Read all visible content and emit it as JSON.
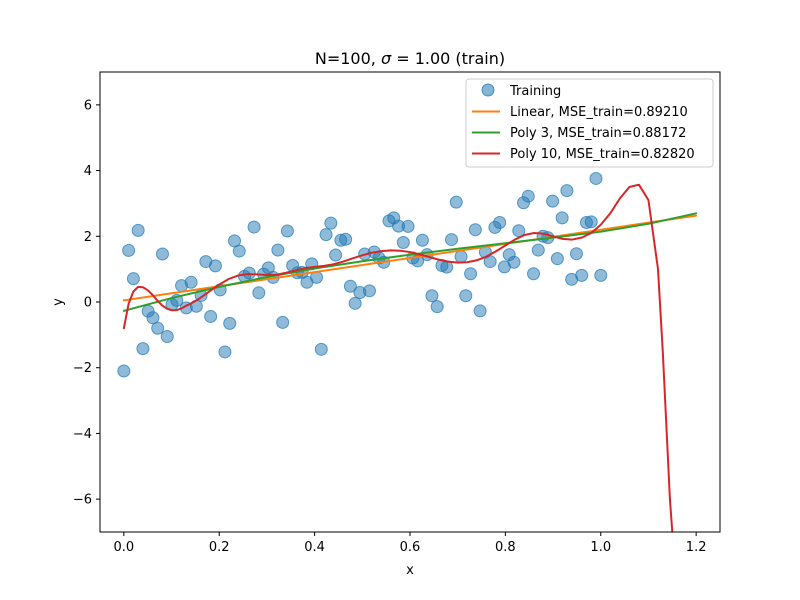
{
  "chart_data": {
    "type": "scatter",
    "title": "N=100, σ = 1.00 (train)",
    "title_parts": {
      "prefix": "N=100, ",
      "sigma": "σ",
      "equals": " = 1.00",
      "suffix": " (train)"
    },
    "xlabel": "x",
    "ylabel": "y",
    "xlim": [
      -0.05,
      1.25
    ],
    "ylim": [
      -7,
      7
    ],
    "xticks": [
      0.0,
      0.2,
      0.4,
      0.6,
      0.8,
      1.0,
      1.2
    ],
    "xtick_labels": [
      "0.0",
      "0.2",
      "0.4",
      "0.6",
      "0.8",
      "1.0",
      "1.2"
    ],
    "yticks": [
      -6,
      -4,
      -2,
      0,
      2,
      4,
      6
    ],
    "ytick_labels": [
      "−6",
      "−4",
      "−2",
      "0",
      "2",
      "4",
      "6"
    ],
    "grid": false,
    "legend_position": "top-right",
    "scatter": {
      "name": "Training",
      "color": "#1f77b4",
      "x": [
        0.0,
        0.01,
        0.02,
        0.03,
        0.04,
        0.051,
        0.061,
        0.071,
        0.081,
        0.091,
        0.101,
        0.111,
        0.121,
        0.131,
        0.141,
        0.152,
        0.162,
        0.172,
        0.182,
        0.192,
        0.202,
        0.212,
        0.222,
        0.232,
        0.242,
        0.253,
        0.263,
        0.273,
        0.283,
        0.293,
        0.303,
        0.313,
        0.323,
        0.333,
        0.343,
        0.354,
        0.364,
        0.374,
        0.384,
        0.394,
        0.404,
        0.414,
        0.424,
        0.434,
        0.444,
        0.455,
        0.465,
        0.475,
        0.485,
        0.495,
        0.505,
        0.515,
        0.525,
        0.535,
        0.545,
        0.556,
        0.566,
        0.576,
        0.586,
        0.596,
        0.606,
        0.616,
        0.626,
        0.636,
        0.646,
        0.657,
        0.667,
        0.677,
        0.687,
        0.697,
        0.707,
        0.717,
        0.727,
        0.737,
        0.747,
        0.758,
        0.768,
        0.778,
        0.788,
        0.798,
        0.808,
        0.818,
        0.828,
        0.838,
        0.848,
        0.859,
        0.869,
        0.879,
        0.889,
        0.899,
        0.909,
        0.919,
        0.929,
        0.939,
        0.949,
        0.96,
        0.97,
        0.98,
        0.99,
        1.0
      ],
      "y": [
        -2.1,
        1.57,
        0.71,
        2.18,
        -1.42,
        -0.28,
        -0.48,
        -0.8,
        1.46,
        -1.05,
        -0.08,
        0.05,
        0.5,
        -0.18,
        0.6,
        -0.13,
        0.2,
        1.23,
        -0.44,
        1.1,
        0.37,
        -1.52,
        -0.65,
        1.86,
        1.55,
        0.78,
        0.88,
        2.28,
        0.28,
        0.85,
        1.04,
        0.75,
        1.58,
        -0.62,
        2.16,
        1.11,
        0.89,
        0.9,
        0.6,
        1.16,
        0.75,
        -1.44,
        2.05,
        2.4,
        1.43,
        1.88,
        1.91,
        0.48,
        -0.04,
        0.29,
        1.46,
        0.34,
        1.52,
        1.34,
        1.21,
        2.47,
        2.56,
        2.31,
        1.81,
        2.3,
        1.34,
        1.25,
        1.88,
        1.44,
        0.19,
        -0.14,
        1.11,
        1.06,
        1.9,
        3.04,
        1.38,
        0.19,
        0.86,
        2.2,
        -0.27,
        1.52,
        1.23,
        2.27,
        2.42,
        1.07,
        1.44,
        1.21,
        2.17,
        3.02,
        3.22,
        0.86,
        1.58,
        2.0,
        1.96,
        3.07,
        1.32,
        2.56,
        3.39,
        0.69,
        1.47,
        0.81,
        2.42,
        2.44,
        3.76,
        0.81
      ]
    },
    "series": [
      {
        "name": "Linear, MSE_train=0.89210",
        "color": "#ff7f0e",
        "x": [
          0.0,
          1.2
        ],
        "y": [
          0.05,
          2.63
        ]
      },
      {
        "name": "Poly 3, MSE_train=0.88172",
        "color": "#2ca02c",
        "x": [
          0.0,
          0.1,
          0.2,
          0.3,
          0.4,
          0.5,
          0.6,
          0.7,
          0.8,
          0.9,
          1.0,
          1.1,
          1.2
        ],
        "y": [
          -0.27,
          0.12,
          0.46,
          0.76,
          1.02,
          1.24,
          1.44,
          1.62,
          1.79,
          1.96,
          2.14,
          2.38,
          2.7
        ]
      },
      {
        "name": "Poly 10, MSE_train=0.82820",
        "color": "#d62728",
        "x": [
          0.0,
          0.01,
          0.02,
          0.03,
          0.04,
          0.05,
          0.06,
          0.07,
          0.08,
          0.09,
          0.1,
          0.11,
          0.12,
          0.13,
          0.14,
          0.15,
          0.16,
          0.18,
          0.2,
          0.22,
          0.24,
          0.26,
          0.28,
          0.3,
          0.32,
          0.34,
          0.36,
          0.38,
          0.4,
          0.42,
          0.44,
          0.46,
          0.48,
          0.5,
          0.52,
          0.54,
          0.56,
          0.58,
          0.6,
          0.62,
          0.64,
          0.66,
          0.68,
          0.7,
          0.72,
          0.74,
          0.76,
          0.78,
          0.8,
          0.82,
          0.84,
          0.86,
          0.88,
          0.9,
          0.92,
          0.94,
          0.96,
          0.98,
          1.0,
          1.02,
          1.04,
          1.06,
          1.08,
          1.1,
          1.12,
          1.13,
          1.14,
          1.145,
          1.15
        ],
        "y": [
          -0.8,
          -0.05,
          0.32,
          0.46,
          0.45,
          0.36,
          0.22,
          0.05,
          -0.1,
          -0.2,
          -0.25,
          -0.25,
          -0.2,
          -0.12,
          -0.05,
          0.03,
          0.12,
          0.33,
          0.53,
          0.7,
          0.81,
          0.85,
          0.84,
          0.82,
          0.83,
          0.89,
          0.96,
          1.03,
          1.07,
          1.1,
          1.15,
          1.23,
          1.33,
          1.42,
          1.5,
          1.55,
          1.57,
          1.56,
          1.52,
          1.45,
          1.37,
          1.29,
          1.23,
          1.2,
          1.21,
          1.27,
          1.38,
          1.54,
          1.72,
          1.9,
          2.04,
          2.1,
          2.08,
          2.0,
          1.92,
          1.9,
          1.96,
          2.1,
          2.35,
          2.7,
          3.15,
          3.5,
          3.57,
          3.1,
          1.0,
          -1.5,
          -4.5,
          -6.0,
          -7.0
        ]
      }
    ]
  }
}
